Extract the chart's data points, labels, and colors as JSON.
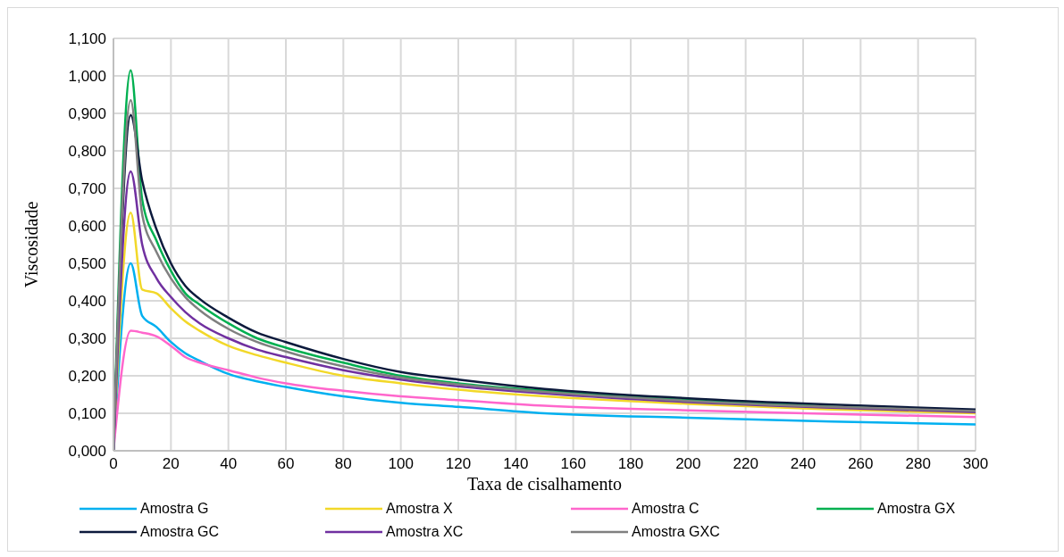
{
  "chart_data": {
    "type": "line",
    "xlabel": "Taxa de cisalhamento",
    "ylabel": "Viscosidade",
    "x": [
      0,
      6,
      10,
      15,
      20,
      25,
      30,
      40,
      50,
      60,
      80,
      100,
      120,
      150,
      200,
      250,
      300
    ],
    "series": [
      {
        "name": "Amostra G",
        "color": "#00b0f0",
        "values": [
          0,
          0.5,
          0.36,
          0.33,
          0.29,
          0.26,
          0.24,
          0.205,
          0.185,
          0.17,
          0.145,
          0.128,
          0.117,
          0.1,
          0.088,
          0.078,
          0.07
        ]
      },
      {
        "name": "Amostra X",
        "color": "#f2d829",
        "values": [
          0,
          0.635,
          0.43,
          0.42,
          0.38,
          0.345,
          0.32,
          0.28,
          0.255,
          0.235,
          0.2,
          0.18,
          0.163,
          0.145,
          0.125,
          0.11,
          0.1
        ]
      },
      {
        "name": "Amostra C",
        "color": "#ff66cc",
        "values": [
          0,
          0.32,
          0.315,
          0.305,
          0.28,
          0.25,
          0.235,
          0.215,
          0.195,
          0.18,
          0.16,
          0.145,
          0.135,
          0.12,
          0.108,
          0.098,
          0.09
        ]
      },
      {
        "name": "Amostra GX",
        "color": "#00b050",
        "values": [
          0,
          1.015,
          0.67,
          0.56,
          0.48,
          0.42,
          0.39,
          0.34,
          0.3,
          0.275,
          0.235,
          0.2,
          0.18,
          0.16,
          0.135,
          0.118,
          0.105
        ]
      },
      {
        "name": "Amostra GC",
        "color": "#0c1a3c",
        "values": [
          0,
          0.895,
          0.72,
          0.59,
          0.5,
          0.44,
          0.405,
          0.355,
          0.315,
          0.29,
          0.245,
          0.21,
          0.19,
          0.165,
          0.14,
          0.123,
          0.11
        ]
      },
      {
        "name": "Amostra XC",
        "color": "#7030a0",
        "values": [
          0,
          0.745,
          0.55,
          0.46,
          0.41,
          0.37,
          0.34,
          0.3,
          0.27,
          0.25,
          0.215,
          0.19,
          0.172,
          0.153,
          0.13,
          0.115,
          0.103
        ]
      },
      {
        "name": "Amostra GXC",
        "color": "#808080",
        "values": [
          0,
          0.935,
          0.63,
          0.53,
          0.46,
          0.41,
          0.375,
          0.325,
          0.29,
          0.265,
          0.225,
          0.195,
          0.177,
          0.157,
          0.133,
          0.117,
          0.106
        ]
      }
    ],
    "xlim": [
      0,
      300
    ],
    "xticks": [
      0,
      20,
      40,
      60,
      80,
      100,
      120,
      140,
      160,
      180,
      200,
      220,
      240,
      260,
      280,
      300
    ],
    "ylim": [
      0,
      1.1
    ],
    "yticks": [
      {
        "value": 0,
        "label": "0,000"
      },
      {
        "value": 0.1,
        "label": "0,100"
      },
      {
        "value": 0.2,
        "label": "0,200"
      },
      {
        "value": 0.3,
        "label": "0,300"
      },
      {
        "value": 0.4,
        "label": "0,400"
      },
      {
        "value": 0.5,
        "label": "0,500"
      },
      {
        "value": 0.6,
        "label": "0,600"
      },
      {
        "value": 0.7,
        "label": "0,700"
      },
      {
        "value": 0.8,
        "label": "0,800"
      },
      {
        "value": 0.9,
        "label": "0,900"
      },
      {
        "value": 1.0,
        "label": "1,000"
      },
      {
        "value": 1.1,
        "label": "1,100"
      }
    ],
    "grid": true,
    "legend": "bottom",
    "marker": "none",
    "line_style": "solid"
  }
}
